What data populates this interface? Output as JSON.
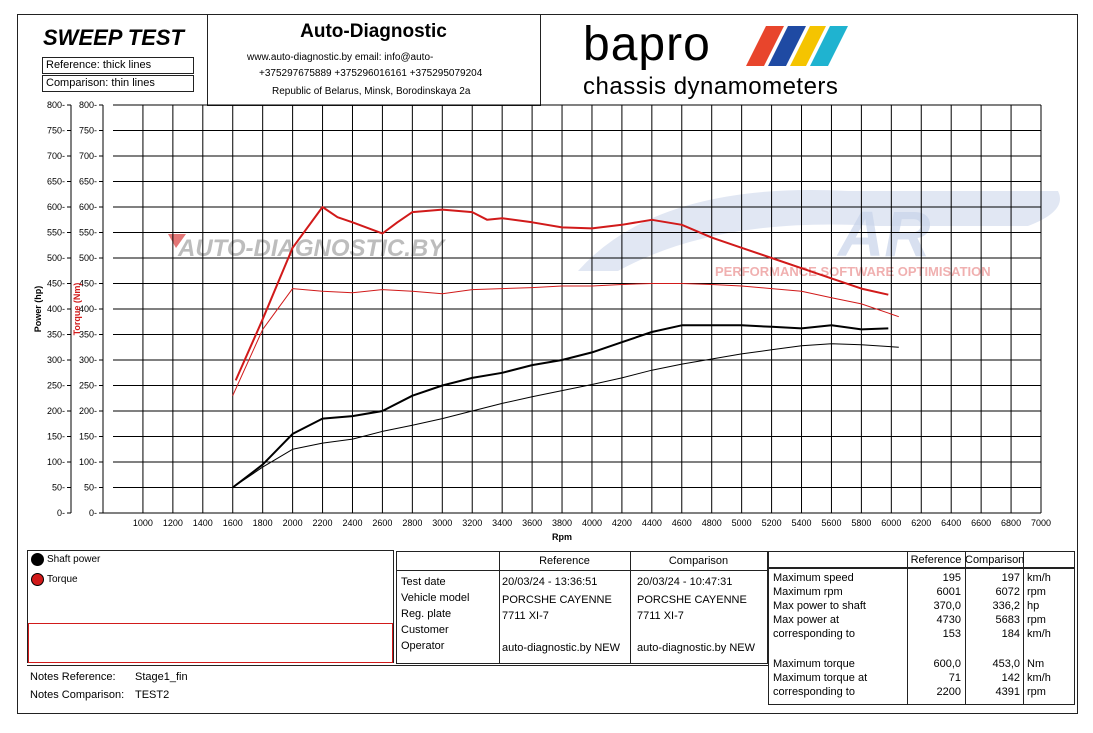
{
  "header": {
    "sweep_title": "SWEEP TEST",
    "reference_note": "Reference: thick lines",
    "comparison_note": "Comparison: thin lines",
    "company": "Auto-Diagnostic",
    "contact_line1": "www.auto-diagnostic.by     email: info@auto-",
    "contact_line2": "+375297675889  +375296016161  +375295079204",
    "contact_line3": "Republic of Belarus, Minsk, Borodinskaya 2a",
    "brand_main": "bapro",
    "brand_sub": "chassis dynamometers"
  },
  "watermark": {
    "left": "AUTO-DIAGNOSTIC.BY",
    "right_sub": "PERFORMANCE SOFTWARE OPTIMISATION"
  },
  "colors": {
    "power": "#000000",
    "torque": "#d11a1a",
    "grid": "#000000"
  },
  "chart_data": {
    "type": "line",
    "xlabel": "Rpm",
    "ylabel_left": "Power (hp)",
    "ylabel_right": "Torque (Nm)",
    "xlim": [
      800,
      7000
    ],
    "ylim": [
      0,
      800
    ],
    "x_ticks": [
      1000,
      1200,
      1400,
      1600,
      1800,
      2000,
      2200,
      2400,
      2600,
      2800,
      3000,
      3200,
      3400,
      3600,
      3800,
      4000,
      4200,
      4400,
      4600,
      4800,
      5000,
      5200,
      5400,
      5600,
      5800,
      6000,
      6200,
      6400,
      6600,
      6800,
      7000
    ],
    "y_ticks": [
      0,
      50,
      100,
      150,
      200,
      250,
      300,
      350,
      400,
      450,
      500,
      550,
      600,
      650,
      700,
      750,
      800
    ],
    "grid": true,
    "series": [
      {
        "name": "Shaft power",
        "role": "reference",
        "color": "#000000",
        "width": 2,
        "x": [
          1600,
          1800,
          2000,
          2200,
          2400,
          2600,
          2800,
          3000,
          3200,
          3400,
          3600,
          3800,
          4000,
          4200,
          4400,
          4600,
          4800,
          5000,
          5200,
          5400,
          5600,
          5800,
          5980
        ],
        "y": [
          50,
          95,
          155,
          185,
          190,
          200,
          230,
          250,
          265,
          275,
          290,
          300,
          315,
          335,
          355,
          368,
          368,
          368,
          365,
          362,
          368,
          360,
          362
        ]
      },
      {
        "name": "Shaft power",
        "role": "comparison",
        "color": "#000000",
        "width": 1,
        "x": [
          1600,
          1800,
          2000,
          2200,
          2400,
          2600,
          2800,
          3000,
          3200,
          3400,
          3600,
          3800,
          4000,
          4200,
          4400,
          4600,
          4800,
          5000,
          5200,
          5400,
          5600,
          5800,
          6000,
          6050
        ],
        "y": [
          50,
          90,
          125,
          137,
          145,
          160,
          172,
          185,
          200,
          215,
          228,
          240,
          252,
          265,
          280,
          292,
          302,
          312,
          320,
          328,
          332,
          330,
          326,
          325
        ]
      },
      {
        "name": "Torque",
        "role": "reference",
        "color": "#d11a1a",
        "width": 2,
        "x": [
          1620,
          1800,
          2000,
          2200,
          2300,
          2400,
          2600,
          2700,
          2800,
          3000,
          3200,
          3300,
          3400,
          3600,
          3800,
          4000,
          4200,
          4400,
          4600,
          4800,
          5000,
          5200,
          5400,
          5600,
          5800,
          5980
        ],
        "y": [
          260,
          380,
          520,
          600,
          580,
          570,
          548,
          570,
          590,
          595,
          590,
          575,
          578,
          570,
          560,
          558,
          565,
          575,
          565,
          540,
          520,
          500,
          480,
          460,
          440,
          428
        ]
      },
      {
        "name": "Torque",
        "role": "comparison",
        "color": "#d11a1a",
        "width": 1,
        "x": [
          1600,
          1800,
          2000,
          2200,
          2400,
          2600,
          2800,
          3000,
          3200,
          3400,
          3600,
          3800,
          4000,
          4200,
          4400,
          4600,
          4800,
          5000,
          5200,
          5400,
          5600,
          5800,
          6000,
          6050
        ],
        "y": [
          230,
          360,
          440,
          435,
          432,
          438,
          435,
          430,
          438,
          440,
          442,
          445,
          445,
          448,
          450,
          450,
          448,
          445,
          440,
          435,
          422,
          410,
          390,
          385
        ]
      }
    ]
  },
  "legend": {
    "shaft_power": "Shaft power",
    "torque": "Torque"
  },
  "notes": {
    "reference_label": "Notes Reference:",
    "reference_value": "Stage1_fin",
    "comparison_label": "Notes Comparison:",
    "comparison_value": "TEST2"
  },
  "test_info": {
    "col_reference": "Reference",
    "col_comparison": "Comparison",
    "rows": [
      {
        "label": "Test date",
        "reference": "20/03/24 - 13:36:51",
        "comparison": "20/03/24 - 10:47:31"
      },
      {
        "label": "Vehicle model",
        "reference": "PORCSHE CAYENNE",
        "comparison": "PORCSHE CAYENNE"
      },
      {
        "label": "Reg. plate",
        "reference": "7711 XI-7",
        "comparison": "7711 XI-7"
      },
      {
        "label": "Customer",
        "reference": "",
        "comparison": ""
      },
      {
        "label": "Operator",
        "reference": "auto-diagnostic.by NEW",
        "comparison": "auto-diagnostic.by NEW"
      }
    ]
  },
  "results": {
    "col_reference": "Reference",
    "col_comparison": "Comparison",
    "rows": [
      {
        "label": "Maximum speed",
        "reference": "195",
        "comparison": "197",
        "unit": "km/h"
      },
      {
        "label": "Maximum rpm",
        "reference": "6001",
        "comparison": "6072",
        "unit": "rpm"
      },
      {
        "label": "Max power to shaft",
        "reference": "370,0",
        "comparison": "336,2",
        "unit": "hp"
      },
      {
        "label": "Max power at",
        "reference": "4730",
        "comparison": "5683",
        "unit": "rpm"
      },
      {
        "label": "corresponding to",
        "reference": "153",
        "comparison": "184",
        "unit": "km/h"
      },
      {
        "label": "",
        "reference": "",
        "comparison": "",
        "unit": ""
      },
      {
        "label": "Maximum torque",
        "reference": "600,0",
        "comparison": "453,0",
        "unit": "Nm"
      },
      {
        "label": "Maximum torque at",
        "reference": "71",
        "comparison": "142",
        "unit": "km/h"
      },
      {
        "label": "corresponding to",
        "reference": "2200",
        "comparison": "4391",
        "unit": "rpm"
      }
    ]
  }
}
